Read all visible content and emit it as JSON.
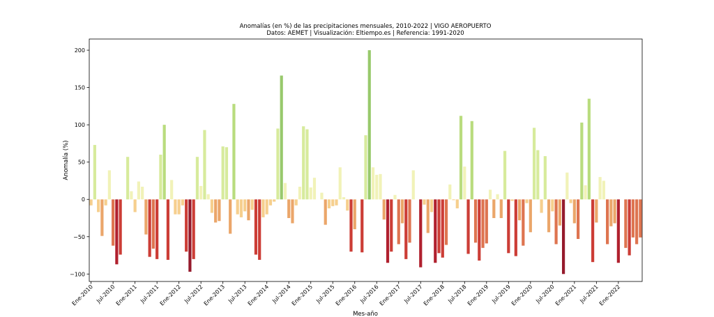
{
  "chart_data": {
    "type": "bar",
    "title": "Anomalías (en %) de las precipitaciones mensuales, 2010-2022 | VIGO AEROPUERTO",
    "subtitle": "Datos: AEMET | Visualización: Eltiempo.es | Referencia: 1991-2020",
    "xlabel": "Mes-año",
    "ylabel": "Anomalía (%)",
    "ylim": [
      -110,
      215
    ],
    "yticks": [
      -100,
      -50,
      0,
      50,
      100,
      150,
      200
    ],
    "xtick_labels": [
      "Ene-2010",
      "Jul-2010",
      "Ene-2011",
      "Jul-2011",
      "Ene-2012",
      "Jul-2012",
      "Ene-2013",
      "Jul-2013",
      "Ene-2014",
      "Jul-2014",
      "Ene-2015",
      "Jul-2015",
      "Ene-2016",
      "Jul-2016",
      "Ene-2017",
      "Jul-2017",
      "Ene-2018",
      "Jul-2018",
      "Ene-2019",
      "Jul-2019",
      "Ene-2020",
      "Jul-2020",
      "Ene-2021",
      "Jul-2021",
      "Ene-2022"
    ],
    "grid": false,
    "legend": "none",
    "start": "2010-01",
    "values": [
      -8,
      73,
      -17,
      -49,
      -8,
      39,
      -62,
      -87,
      -74,
      0,
      57,
      11,
      -17,
      24,
      17,
      -47,
      -77,
      -66,
      -80,
      60,
      100,
      -81,
      26,
      -20,
      -20,
      -8,
      -70,
      -97,
      -80,
      57,
      18,
      93,
      7,
      -18,
      -31,
      -29,
      71,
      70,
      -46,
      128,
      -20,
      -24,
      -16,
      -28,
      -14,
      -74,
      -81,
      -24,
      -20,
      -8,
      -3,
      95,
      166,
      22,
      -25,
      -32,
      -8,
      17,
      98,
      94,
      16,
      29,
      0,
      9,
      -34,
      -12,
      -9,
      -8,
      43,
      3,
      -15,
      -70,
      -40,
      0,
      -71,
      86,
      200,
      43,
      33,
      34,
      -27,
      -85,
      -70,
      6,
      -60,
      -32,
      -80,
      -58,
      39,
      0,
      -91,
      -7,
      -45,
      -17,
      -85,
      -72,
      -78,
      -61,
      20,
      -1,
      -12,
      112,
      44,
      -73,
      105,
      -58,
      -82,
      -65,
      -59,
      13,
      -25,
      7,
      -25,
      65,
      -72,
      -2,
      -76,
      -28,
      -62,
      -5,
      -44,
      96,
      66,
      -18,
      58,
      -44,
      -16,
      -60,
      -35,
      -100,
      36,
      -5,
      -32,
      -53,
      103,
      19,
      135,
      -84,
      -31,
      30,
      25,
      -60,
      -36,
      -32,
      -85,
      0,
      -65,
      -75,
      -51,
      -60,
      -51
    ]
  }
}
